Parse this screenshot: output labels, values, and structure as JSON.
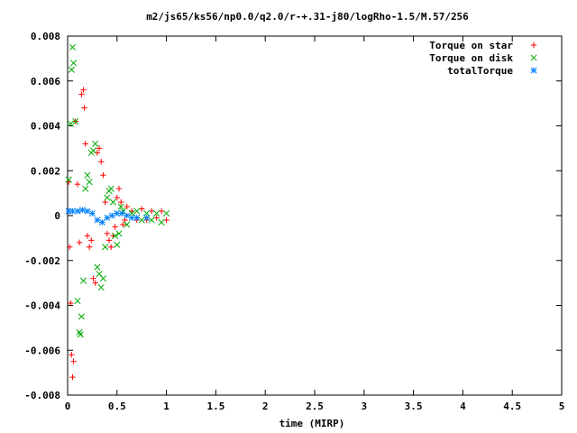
{
  "chart_data": {
    "type": "scatter",
    "title": "m2/js65/ks56/np0.0/q2.0/r-+.31-j80/logRho-1.5/M.57/256",
    "xlabel": "time (MIRP)",
    "ylabel": "",
    "xlim": [
      0,
      5
    ],
    "ylim": [
      -0.008,
      0.008
    ],
    "xticks": [
      0,
      0.5,
      1,
      1.5,
      2,
      2.5,
      3,
      3.5,
      4,
      4.5,
      5
    ],
    "xtick_labels": [
      "0",
      "0.5",
      "1",
      "1.5",
      "2",
      "2.5",
      "3",
      "3.5",
      "4",
      "4.5",
      "5"
    ],
    "yticks": [
      -0.008,
      -0.006,
      -0.004,
      -0.002,
      0,
      0.002,
      0.004,
      0.006,
      0.008
    ],
    "ytick_labels": [
      "-0.008",
      "-0.006",
      "-0.004",
      "-0.002",
      "0",
      "0.002",
      "0.004",
      "0.006",
      "0.008"
    ],
    "grid": false,
    "legend_position": "top-right",
    "series": [
      {
        "name": "Torque on star",
        "marker": "plus",
        "color": "#ff0000",
        "points": [
          [
            0.01,
            0.0015
          ],
          [
            0.02,
            -0.0014
          ],
          [
            0.03,
            -0.0039
          ],
          [
            0.04,
            -0.0062
          ],
          [
            0.05,
            -0.0072
          ],
          [
            0.06,
            -0.0065
          ],
          [
            0.08,
            0.0042
          ],
          [
            0.1,
            0.0014
          ],
          [
            0.12,
            -0.0012
          ],
          [
            0.14,
            0.0054
          ],
          [
            0.16,
            0.0056
          ],
          [
            0.17,
            0.0048
          ],
          [
            0.18,
            0.0032
          ],
          [
            0.2,
            -0.0009
          ],
          [
            0.22,
            -0.0014
          ],
          [
            0.24,
            -0.0011
          ],
          [
            0.26,
            -0.0028
          ],
          [
            0.28,
            -0.003
          ],
          [
            0.3,
            0.0028
          ],
          [
            0.32,
            0.003
          ],
          [
            0.34,
            0.0024
          ],
          [
            0.36,
            0.0018
          ],
          [
            0.38,
            0.0006
          ],
          [
            0.4,
            -0.0008
          ],
          [
            0.42,
            -0.0011
          ],
          [
            0.44,
            -0.0014
          ],
          [
            0.46,
            -0.0009
          ],
          [
            0.48,
            -0.0005
          ],
          [
            0.5,
            0.0008
          ],
          [
            0.52,
            0.0012
          ],
          [
            0.54,
            0.0006
          ],
          [
            0.56,
            -0.0004
          ],
          [
            0.58,
            -0.0002
          ],
          [
            0.6,
            0.0004
          ],
          [
            0.65,
            0.0002
          ],
          [
            0.7,
            -0.0002
          ],
          [
            0.75,
            0.0003
          ],
          [
            0.8,
            -0.0002
          ],
          [
            0.85,
            0.0002
          ],
          [
            0.9,
            -0.0001
          ],
          [
            0.95,
            0.0002
          ],
          [
            1.0,
            -0.0002
          ]
        ]
      },
      {
        "name": "Torque on disk",
        "marker": "cross",
        "color": "#00aa00",
        "points": [
          [
            0.01,
            0.0016
          ],
          [
            0.03,
            0.0041
          ],
          [
            0.04,
            0.0065
          ],
          [
            0.05,
            0.0075
          ],
          [
            0.06,
            0.0068
          ],
          [
            0.08,
            0.0042
          ],
          [
            0.1,
            -0.0038
          ],
          [
            0.12,
            -0.0052
          ],
          [
            0.13,
            -0.0053
          ],
          [
            0.14,
            -0.0045
          ],
          [
            0.16,
            -0.0029
          ],
          [
            0.18,
            0.0012
          ],
          [
            0.2,
            0.0018
          ],
          [
            0.22,
            0.0015
          ],
          [
            0.24,
            0.0028
          ],
          [
            0.26,
            0.0029
          ],
          [
            0.28,
            0.0032
          ],
          [
            0.3,
            -0.0023
          ],
          [
            0.32,
            -0.0026
          ],
          [
            0.34,
            -0.0032
          ],
          [
            0.36,
            -0.0028
          ],
          [
            0.38,
            -0.0014
          ],
          [
            0.4,
            0.0008
          ],
          [
            0.42,
            0.0011
          ],
          [
            0.44,
            0.0012
          ],
          [
            0.46,
            0.0006
          ],
          [
            0.48,
            -0.0009
          ],
          [
            0.5,
            -0.0013
          ],
          [
            0.52,
            -0.0008
          ],
          [
            0.54,
            0.0004
          ],
          [
            0.56,
            0.0002
          ],
          [
            0.6,
            -0.0004
          ],
          [
            0.65,
            0.0001
          ],
          [
            0.7,
            0.0002
          ],
          [
            0.75,
            -0.0002
          ],
          [
            0.8,
            0.0001
          ],
          [
            0.85,
            -0.0002
          ],
          [
            0.9,
            0.0001
          ],
          [
            0.95,
            -0.0003
          ],
          [
            1.0,
            0.0001
          ]
        ]
      },
      {
        "name": "totalTorque",
        "marker": "star",
        "color": "#0080ff",
        "points": [
          [
            0.01,
            0.0002
          ],
          [
            0.05,
            0.0002
          ],
          [
            0.1,
            0.0002
          ],
          [
            0.15,
            0.00025
          ],
          [
            0.2,
            0.0002
          ],
          [
            0.25,
            0.0001
          ],
          [
            0.3,
            -0.0002
          ],
          [
            0.35,
            -0.0003
          ],
          [
            0.4,
            -0.0001
          ],
          [
            0.45,
            0.0
          ],
          [
            0.5,
            0.0001
          ],
          [
            0.55,
            0.0001
          ],
          [
            0.6,
            0.0
          ],
          [
            0.65,
            -0.0001
          ],
          [
            0.7,
            -0.0001
          ],
          [
            0.8,
            -0.0001
          ]
        ]
      }
    ]
  }
}
